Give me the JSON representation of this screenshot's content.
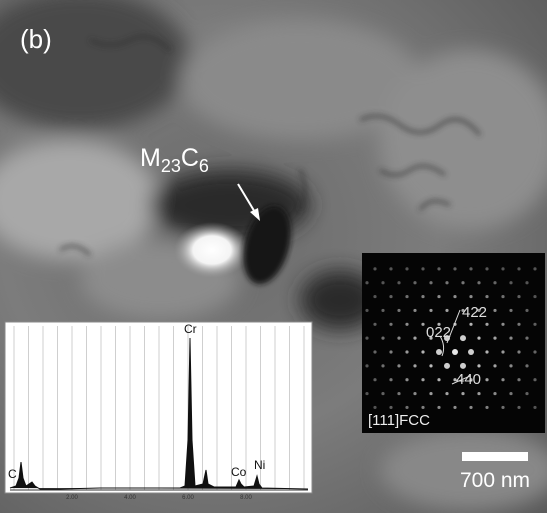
{
  "panel_label": "(b)",
  "particle_label": [
    "M",
    "23",
    "C",
    "6"
  ],
  "eds_inset": {
    "peak_labels": [
      "C",
      "Cr",
      "Co",
      "Ni"
    ],
    "x_tick_labels": [
      "2.00",
      "4.00",
      "6.00",
      "8.00"
    ]
  },
  "diffraction_inset": {
    "spot_labels": [
      "422",
      "022",
      "440"
    ],
    "zone_axis": "[111]FCC"
  },
  "scale_bar": "700 nm"
}
